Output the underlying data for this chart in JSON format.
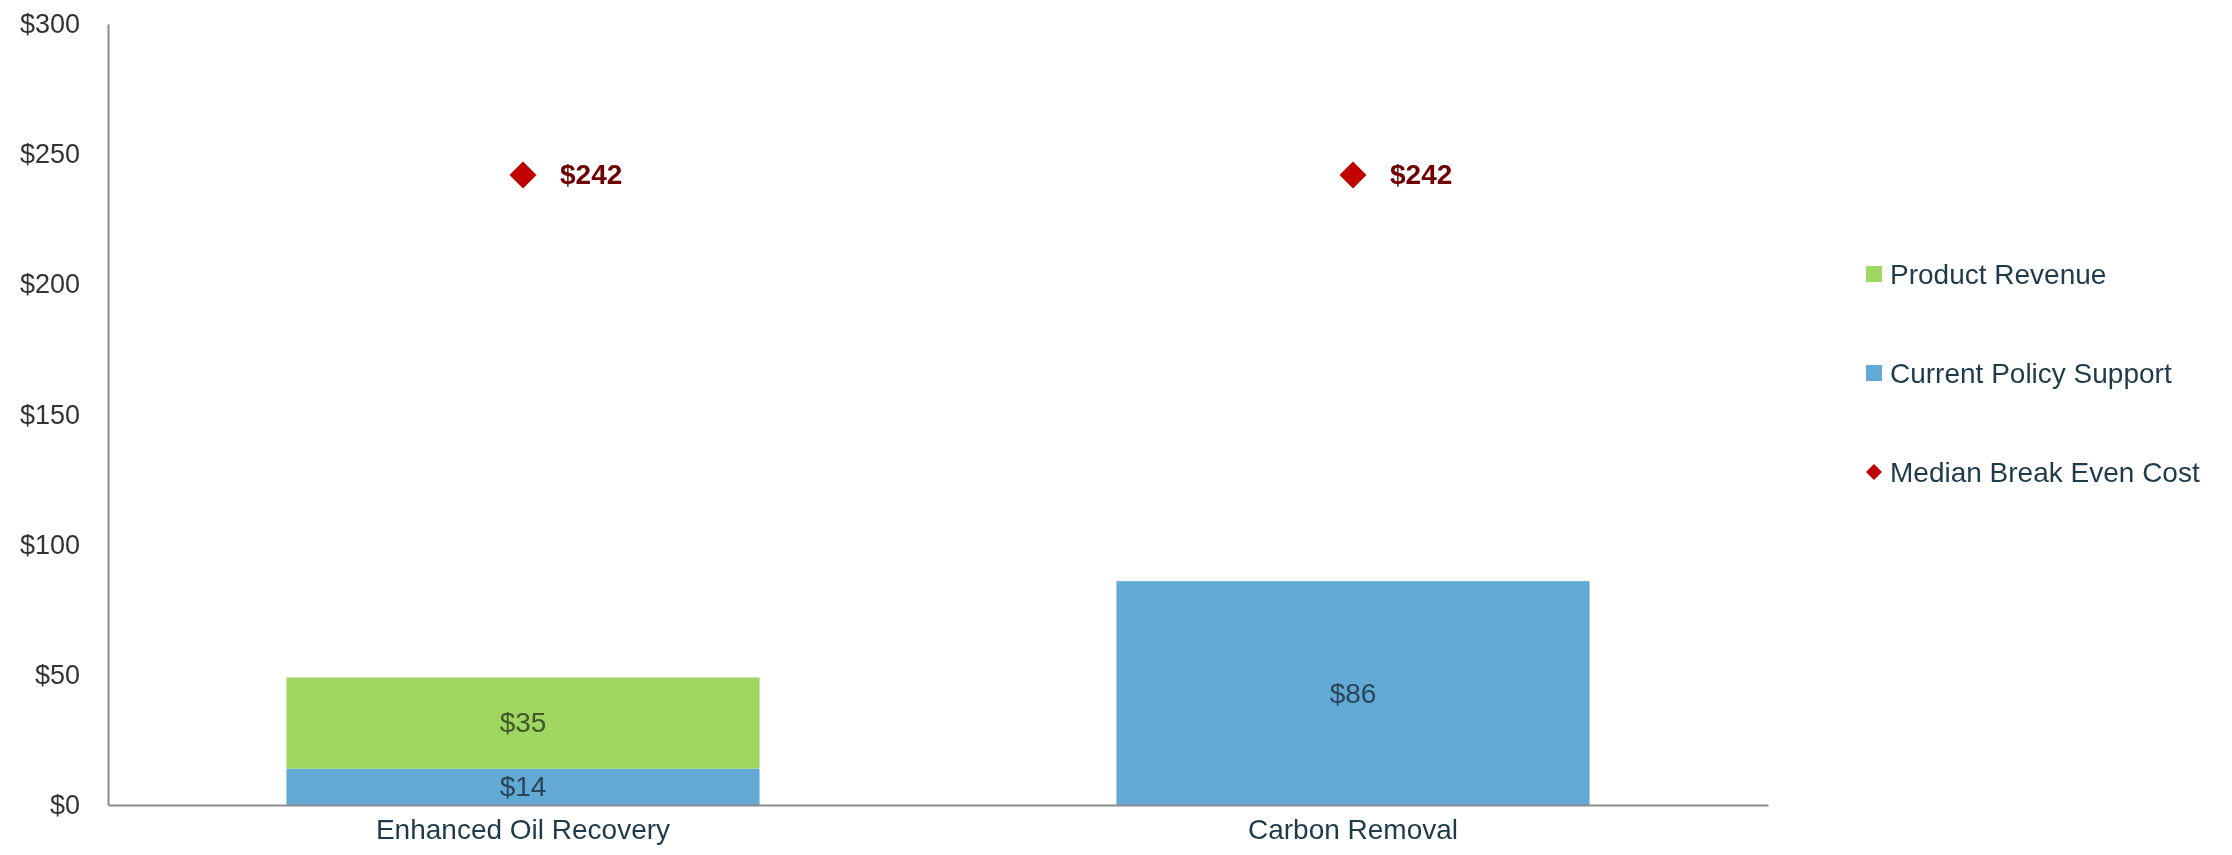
{
  "chart_data": {
    "type": "bar",
    "stacked": true,
    "categories": [
      "Enhanced Oil Recovery",
      "Carbon Removal"
    ],
    "series": [
      {
        "name": "Current Policy Support",
        "color": "#63a9d5",
        "values": [
          14,
          86
        ],
        "value_labels": [
          "$14",
          "$86"
        ]
      },
      {
        "name": "Product Revenue",
        "color": "#a0d662",
        "values": [
          35,
          null
        ],
        "value_labels": [
          "$35",
          null
        ]
      },
      {
        "name": "Median Break Even Cost",
        "type": "scatter",
        "marker": "diamond",
        "color": "#c00000",
        "x": [
          "Enhanced Oil Recovery",
          "Carbon Removal"
        ],
        "values": [
          242,
          242
        ],
        "value_labels": [
          "$242",
          "$242"
        ]
      }
    ],
    "ylim": [
      0,
      300
    ],
    "yticks": [
      {
        "value": 0,
        "label": "$0"
      },
      {
        "value": 50,
        "label": "$50"
      },
      {
        "value": 100,
        "label": "$100"
      },
      {
        "value": 150,
        "label": "$150"
      },
      {
        "value": 200,
        "label": "$200"
      },
      {
        "value": 250,
        "label": "$250"
      },
      {
        "value": 300,
        "label": "$300"
      }
    ],
    "grid": false,
    "legend": "right"
  }
}
